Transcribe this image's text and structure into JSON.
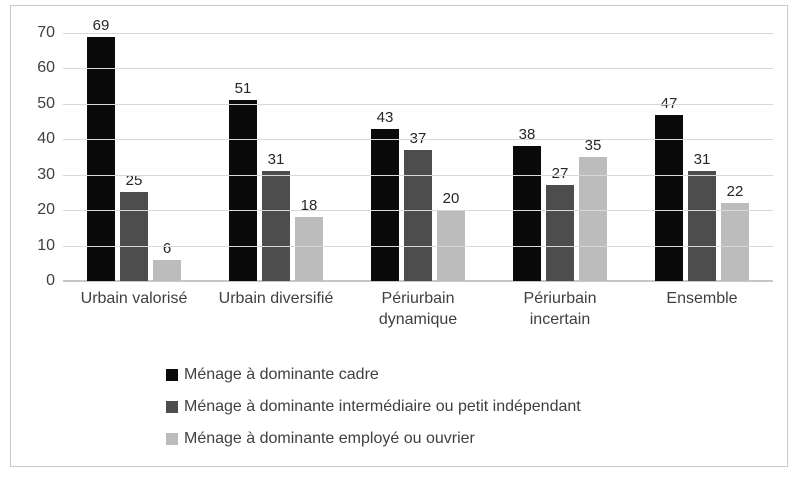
{
  "chart_data": {
    "type": "bar",
    "title": "",
    "categories": [
      "Urbain valorisé",
      "Urbain diversifié",
      "Périurbain dynamique",
      "Périurbain incertain",
      "Ensemble"
    ],
    "series": [
      {
        "name": "Ménage à dominante cadre",
        "color": "#0a0a0a",
        "values": [
          69,
          51,
          43,
          38,
          47
        ]
      },
      {
        "name": "Ménage à dominante intermédiaire ou petit indépendant",
        "color": "#4d4d4d",
        "values": [
          25,
          31,
          37,
          27,
          31
        ]
      },
      {
        "name": "Ménage à dominante employé ou ouvrier",
        "color": "#bcbcbc",
        "values": [
          6,
          18,
          20,
          35,
          22
        ]
      }
    ],
    "yticks": [
      0,
      10,
      20,
      30,
      40,
      50,
      60,
      70
    ],
    "ylim": [
      0,
      70
    ],
    "grid": true,
    "legend_position": "bottom-left",
    "colors": {
      "grid": "#d9d9d9",
      "axis": "#c6c6c6",
      "text": "#404040",
      "data_label": "#262626",
      "frame_border": "#cbcbcb"
    }
  }
}
